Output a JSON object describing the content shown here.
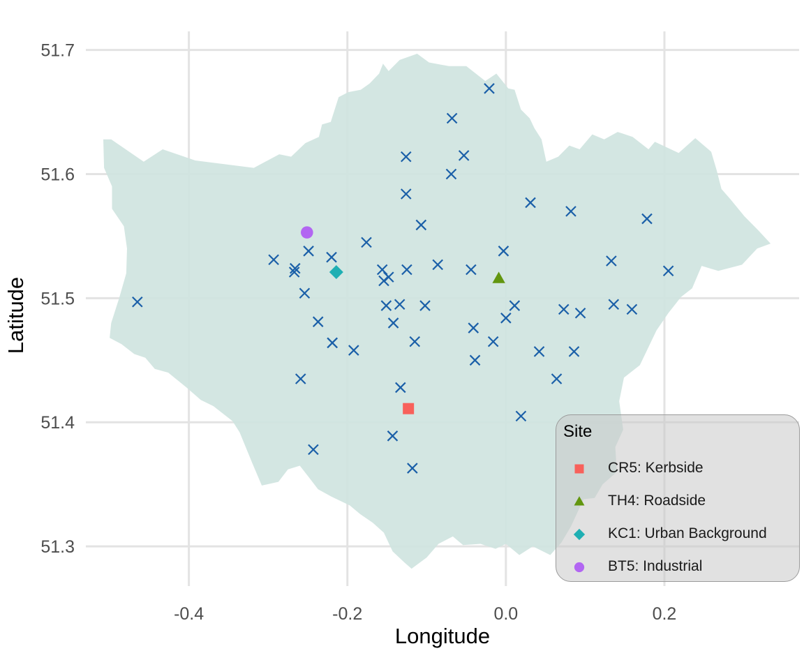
{
  "chart_data": {
    "type": "scatter",
    "xlabel": "Longitude",
    "ylabel": "Latitude",
    "xlim": [
      -0.53,
      0.37
    ],
    "ylim": [
      51.268,
      51.715
    ],
    "x_ticks": [
      -0.4,
      -0.2,
      0.0,
      0.2
    ],
    "x_tick_labels": [
      "-0.4",
      "-0.2",
      "0.0",
      "0.2"
    ],
    "y_ticks": [
      51.3,
      51.4,
      51.5,
      51.6,
      51.7
    ],
    "y_tick_labels": [
      "51.3",
      "51.4",
      "51.5",
      "51.6",
      "51.7"
    ],
    "grid": true,
    "region_fill": "#cfe4e0",
    "region_outline": [
      [
        -0.508,
        51.628
      ],
      [
        -0.498,
        51.628
      ],
      [
        -0.457,
        51.61
      ],
      [
        -0.433,
        51.62
      ],
      [
        -0.392,
        51.611
      ],
      [
        -0.318,
        51.605
      ],
      [
        -0.286,
        51.616
      ],
      [
        -0.271,
        51.614
      ],
      [
        -0.253,
        51.625
      ],
      [
        -0.236,
        51.63
      ],
      [
        -0.232,
        51.64
      ],
      [
        -0.221,
        51.642
      ],
      [
        -0.211,
        51.662
      ],
      [
        -0.199,
        51.666
      ],
      [
        -0.183,
        51.668
      ],
      [
        -0.172,
        51.673
      ],
      [
        -0.16,
        51.681
      ],
      [
        -0.155,
        51.689
      ],
      [
        -0.148,
        51.683
      ],
      [
        -0.134,
        51.692
      ],
      [
        -0.112,
        51.697
      ],
      [
        -0.097,
        51.69
      ],
      [
        -0.072,
        51.687
      ],
      [
        -0.05,
        51.687
      ],
      [
        -0.026,
        51.675
      ],
      [
        -0.012,
        51.681
      ],
      [
        0.003,
        51.669
      ],
      [
        0.011,
        51.668
      ],
      [
        0.019,
        51.652
      ],
      [
        0.03,
        51.645
      ],
      [
        0.036,
        51.637
      ],
      [
        0.045,
        51.628
      ],
      [
        0.051,
        51.61
      ],
      [
        0.066,
        51.614
      ],
      [
        0.08,
        51.623
      ],
      [
        0.093,
        51.62
      ],
      [
        0.109,
        51.632
      ],
      [
        0.124,
        51.628
      ],
      [
        0.141,
        51.634
      ],
      [
        0.16,
        51.63
      ],
      [
        0.18,
        51.62
      ],
      [
        0.188,
        51.626
      ],
      [
        0.218,
        51.617
      ],
      [
        0.239,
        51.629
      ],
      [
        0.259,
        51.618
      ],
      [
        0.266,
        51.603
      ],
      [
        0.272,
        51.588
      ],
      [
        0.283,
        51.58
      ],
      [
        0.301,
        51.566
      ],
      [
        0.318,
        51.555
      ],
      [
        0.334,
        51.544
      ],
      [
        0.317,
        51.54
      ],
      [
        0.298,
        51.527
      ],
      [
        0.268,
        51.522
      ],
      [
        0.247,
        51.526
      ],
      [
        0.235,
        51.508
      ],
      [
        0.221,
        51.501
      ],
      [
        0.205,
        51.488
      ],
      [
        0.19,
        51.474
      ],
      [
        0.169,
        51.446
      ],
      [
        0.149,
        51.436
      ],
      [
        0.143,
        51.417
      ],
      [
        0.148,
        51.394
      ],
      [
        0.138,
        51.38
      ],
      [
        0.14,
        51.36
      ],
      [
        0.122,
        51.35
      ],
      [
        0.112,
        51.339
      ],
      [
        0.098,
        51.338
      ],
      [
        0.082,
        51.316
      ],
      [
        0.07,
        51.303
      ],
      [
        0.056,
        51.293
      ],
      [
        0.034,
        51.3
      ],
      [
        0.017,
        51.293
      ],
      [
        0.0,
        51.302
      ],
      [
        -0.013,
        51.298
      ],
      [
        -0.032,
        51.302
      ],
      [
        -0.054,
        51.301
      ],
      [
        -0.067,
        51.308
      ],
      [
        -0.085,
        51.302
      ],
      [
        -0.1,
        51.291
      ],
      [
        -0.119,
        51.282
      ],
      [
        -0.128,
        51.287
      ],
      [
        -0.143,
        51.296
      ],
      [
        -0.154,
        51.311
      ],
      [
        -0.168,
        51.319
      ],
      [
        -0.184,
        51.326
      ],
      [
        -0.197,
        51.333
      ],
      [
        -0.22,
        51.34
      ],
      [
        -0.237,
        51.346
      ],
      [
        -0.249,
        51.356
      ],
      [
        -0.26,
        51.365
      ],
      [
        -0.275,
        51.362
      ],
      [
        -0.287,
        51.352
      ],
      [
        -0.308,
        51.349
      ],
      [
        -0.32,
        51.367
      ],
      [
        -0.336,
        51.392
      ],
      [
        -0.345,
        51.401
      ],
      [
        -0.369,
        51.413
      ],
      [
        -0.385,
        51.418
      ],
      [
        -0.403,
        51.428
      ],
      [
        -0.426,
        51.44
      ],
      [
        -0.443,
        51.443
      ],
      [
        -0.455,
        51.452
      ],
      [
        -0.469,
        51.455
      ],
      [
        -0.485,
        51.463
      ],
      [
        -0.5,
        51.468
      ],
      [
        -0.498,
        51.48
      ],
      [
        -0.488,
        51.5
      ],
      [
        -0.479,
        51.52
      ],
      [
        -0.478,
        51.54
      ],
      [
        -0.482,
        51.558
      ],
      [
        -0.497,
        51.572
      ],
      [
        -0.497,
        51.59
      ],
      [
        -0.507,
        51.605
      ],
      [
        -0.508,
        51.628
      ]
    ],
    "series": [
      {
        "marker": "x",
        "color": "#1a5fa8",
        "points": [
          [
            -0.465,
            51.497
          ],
          [
            -0.293,
            51.531
          ],
          [
            -0.266,
            51.524
          ],
          [
            -0.267,
            51.521
          ],
          [
            -0.249,
            51.538
          ],
          [
            -0.254,
            51.504
          ],
          [
            -0.237,
            51.481
          ],
          [
            -0.259,
            51.435
          ],
          [
            -0.243,
            51.378
          ],
          [
            -0.22,
            51.533
          ],
          [
            -0.219,
            51.464
          ],
          [
            -0.219,
            51.464
          ],
          [
            -0.192,
            51.458
          ],
          [
            -0.176,
            51.545
          ],
          [
            -0.156,
            51.523
          ],
          [
            -0.154,
            51.514
          ],
          [
            -0.148,
            51.517
          ],
          [
            -0.151,
            51.494
          ],
          [
            -0.142,
            51.48
          ],
          [
            -0.134,
            51.495
          ],
          [
            -0.143,
            51.389
          ],
          [
            -0.133,
            51.428
          ],
          [
            -0.126,
            51.614
          ],
          [
            -0.126,
            51.584
          ],
          [
            -0.125,
            51.523
          ],
          [
            -0.118,
            51.363
          ],
          [
            -0.115,
            51.465
          ],
          [
            -0.107,
            51.559
          ],
          [
            -0.102,
            51.494
          ],
          [
            -0.086,
            51.527
          ],
          [
            -0.068,
            51.645
          ],
          [
            -0.069,
            51.6
          ],
          [
            -0.053,
            51.615
          ],
          [
            -0.044,
            51.523
          ],
          [
            -0.041,
            51.476
          ],
          [
            -0.039,
            51.45
          ],
          [
            -0.021,
            51.669
          ],
          [
            -0.016,
            51.465
          ],
          [
            -0.003,
            51.538
          ],
          [
            0.0,
            51.484
          ],
          [
            0.011,
            51.494
          ],
          [
            0.019,
            51.405
          ],
          [
            0.031,
            51.577
          ],
          [
            0.042,
            51.457
          ],
          [
            0.064,
            51.435
          ],
          [
            0.073,
            51.491
          ],
          [
            0.082,
            51.57
          ],
          [
            0.086,
            51.457
          ],
          [
            0.094,
            51.488
          ],
          [
            0.133,
            51.53
          ],
          [
            0.136,
            51.495
          ],
          [
            0.159,
            51.491
          ],
          [
            0.178,
            51.564
          ],
          [
            0.205,
            51.522
          ]
        ]
      },
      {
        "name": "CR5: Kerbside",
        "marker": "square",
        "color": "#f8615b",
        "points": [
          [
            -0.123,
            51.411
          ]
        ]
      },
      {
        "name": "TH4: Roadside",
        "marker": "triangle",
        "color": "#62960f",
        "points": [
          [
            -0.009,
            51.516
          ]
        ]
      },
      {
        "name": "KC1: Urban Background",
        "marker": "diamond",
        "color": "#1fafb3",
        "points": [
          [
            -0.214,
            51.521
          ]
        ]
      },
      {
        "name": "BT5: Industrial",
        "marker": "circle",
        "color": "#b266f2",
        "points": [
          [
            -0.251,
            51.553
          ]
        ]
      }
    ],
    "legend": {
      "title": "Site",
      "position": "bottom-right",
      "items": [
        "CR5: Kerbside",
        "TH4: Roadside",
        "KC1: Urban Background",
        "BT5: Industrial"
      ]
    }
  }
}
